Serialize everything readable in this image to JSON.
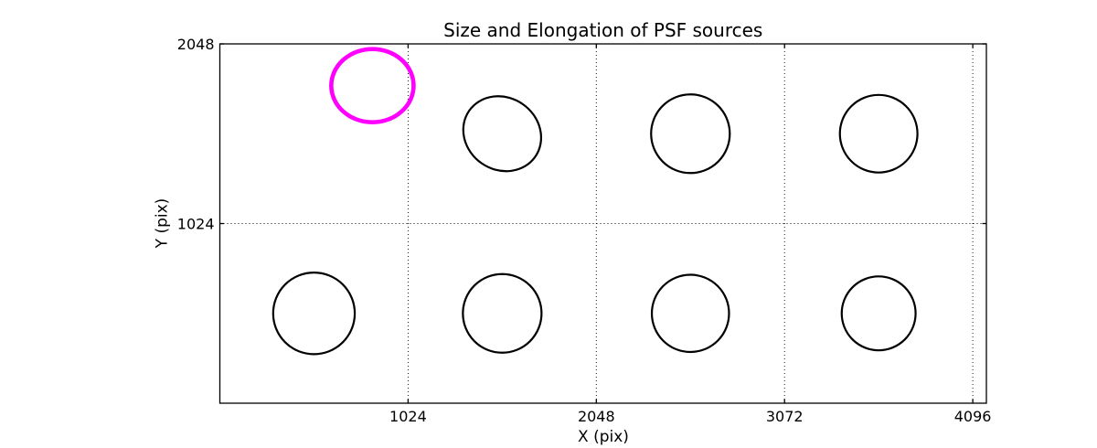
{
  "figure": {
    "kind": "matplotlib-style plot"
  },
  "chart_data": {
    "type": "scatter",
    "title": "Size and Elongation of PSF sources",
    "xlabel": "X (pix)",
    "ylabel": "Y (pix)",
    "xlim": [
      0,
      4170
    ],
    "ylim": [
      0,
      2048
    ],
    "xticks": [
      1024,
      2048,
      3072,
      4096
    ],
    "yticks": [
      1024,
      2048
    ],
    "grid": "dotted",
    "legend": "none",
    "colors": {
      "normal_source": "#000000",
      "flagged_source": "#ff00ff",
      "frame": "#000000",
      "grid": "#000000"
    },
    "line_widths": {
      "normal_source": 2.2,
      "flagged_source": 4.6,
      "frame": 1.3,
      "grid": 0.9,
      "tick": 1.3
    },
    "sources": [
      {
        "x": 830,
        "y": 1810,
        "a": 224,
        "b": 199,
        "angle_deg": 0,
        "flagged": true
      },
      {
        "x": 1536,
        "y": 1536,
        "a": 219,
        "b": 196,
        "angle_deg": 35,
        "flagged": false
      },
      {
        "x": 2560,
        "y": 1536,
        "a": 214,
        "b": 214,
        "angle_deg": 0,
        "flagged": false
      },
      {
        "x": 3584,
        "y": 1536,
        "a": 211,
        "b": 211,
        "angle_deg": 0,
        "flagged": false
      },
      {
        "x": 512,
        "y": 512,
        "a": 222,
        "b": 222,
        "angle_deg": 0,
        "flagged": false
      },
      {
        "x": 1536,
        "y": 512,
        "a": 214,
        "b": 214,
        "angle_deg": 0,
        "flagged": false
      },
      {
        "x": 2560,
        "y": 512,
        "a": 210,
        "b": 210,
        "angle_deg": 0,
        "flagged": false
      },
      {
        "x": 3584,
        "y": 512,
        "a": 201,
        "b": 201,
        "angle_deg": 0,
        "flagged": false
      }
    ]
  }
}
